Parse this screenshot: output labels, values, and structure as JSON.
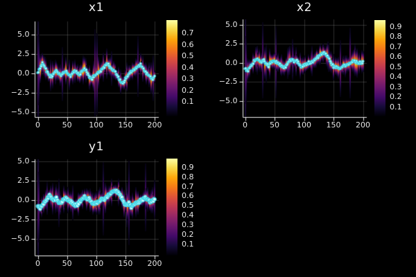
{
  "figure": {
    "background": "#000000",
    "text_color": "#e6e6e6",
    "axis_color": "#f0f0f0",
    "grid_color": "rgba(150,150,150,0.30)"
  },
  "colormap": {
    "name": "inferno",
    "stops": [
      "#000004",
      "#160b39",
      "#420a68",
      "#6a176e",
      "#932667",
      "#bc3754",
      "#dd513a",
      "#f37819",
      "#fca50a",
      "#f6d746",
      "#fcffa4"
    ]
  },
  "marker_style": {
    "fill": "#d8feff",
    "edge": "#1ecfe3",
    "line": "rgba(110,233,245,0.55)"
  },
  "chart_data": [
    {
      "type": "heatmap",
      "title": "x1",
      "xlabel": "",
      "ylabel": "",
      "grid": true,
      "legend": "none",
      "xtick_labels": [
        "0",
        "50",
        "100",
        "150",
        "200"
      ],
      "xtick_values": [
        0,
        50,
        100,
        150,
        200
      ],
      "ytick_labels": [
        "5.0",
        "2.5",
        "0.0",
        "−2.5",
        "−5.0"
      ],
      "ytick_values": [
        5,
        2.5,
        0,
        -2.5,
        -5
      ],
      "xlim": [
        -7,
        207
      ],
      "ylim": [
        -5.6,
        6.7
      ],
      "colorbar_tick_labels": [
        "0.7",
        "0.6",
        "0.5",
        "0.4",
        "0.3",
        "0.2",
        "0.1"
      ],
      "colorbar_range": [
        0,
        0.75
      ],
      "overlay_marker": "cyan-circles",
      "trajectory": {
        "t": [
          0,
          4,
          8,
          12,
          16,
          20,
          24,
          28,
          32,
          36,
          40,
          44,
          48,
          52,
          56,
          60,
          64,
          68,
          72,
          76,
          80,
          84,
          88,
          92,
          96,
          100,
          104,
          108,
          112,
          116,
          120,
          124,
          128,
          132,
          136,
          140,
          144,
          148,
          152,
          156,
          160,
          164,
          168,
          172,
          176,
          180,
          184,
          188,
          192,
          196,
          200
        ],
        "y": [
          0.1,
          0.7,
          1.2,
          0.8,
          0.2,
          -0.3,
          -0.45,
          0.1,
          0.3,
          -0.1,
          -0.35,
          0.05,
          0.25,
          -0.1,
          -0.3,
          0.05,
          0.3,
          0.0,
          -0.15,
          0.3,
          0.55,
          0.2,
          -0.5,
          -0.75,
          -0.35,
          -0.2,
          0.1,
          0.4,
          0.7,
          1.0,
          1.15,
          0.7,
          0.45,
          0.2,
          -0.3,
          -0.9,
          -1.3,
          -1.1,
          -0.5,
          -0.1,
          0.2,
          0.4,
          0.7,
          0.9,
          1.05,
          0.6,
          0.2,
          -0.1,
          -0.4,
          -0.8,
          -0.45
        ]
      }
    },
    {
      "type": "heatmap",
      "title": "x2",
      "xlabel": "",
      "ylabel": "",
      "grid": true,
      "legend": "none",
      "xtick_labels": [
        "0",
        "50",
        "100",
        "150",
        "200"
      ],
      "xtick_values": [
        0,
        50,
        100,
        150,
        200
      ],
      "ytick_labels": [
        "5.0",
        "2.5",
        "0.0",
        "−2.5",
        "−5.0"
      ],
      "ytick_values": [
        5,
        2.5,
        0,
        -2.5,
        -5
      ],
      "xlim": [
        -7,
        207
      ],
      "ylim": [
        -7.1,
        5.7
      ],
      "colorbar_tick_labels": [
        "0.9",
        "0.8",
        "0.7",
        "0.6",
        "0.5",
        "0.4",
        "0.3",
        "0.2",
        "0.1"
      ],
      "colorbar_range": [
        0,
        0.95
      ],
      "overlay_marker": "cyan-circles",
      "trajectory": {
        "t": [
          0,
          4,
          8,
          12,
          16,
          20,
          24,
          28,
          32,
          36,
          40,
          44,
          48,
          52,
          56,
          60,
          64,
          68,
          72,
          76,
          80,
          84,
          88,
          92,
          96,
          100,
          104,
          108,
          112,
          116,
          120,
          124,
          128,
          132,
          136,
          140,
          144,
          148,
          152,
          156,
          160,
          164,
          168,
          172,
          176,
          180,
          184,
          188,
          192,
          196,
          200
        ],
        "y": [
          -0.8,
          -1.05,
          -0.7,
          -0.2,
          0.3,
          0.5,
          0.25,
          0.1,
          0.3,
          -0.2,
          -0.4,
          0.1,
          0.3,
          0.1,
          -0.1,
          -0.3,
          -0.55,
          -0.6,
          -0.1,
          0.3,
          0.4,
          0.2,
          0.3,
          -0.2,
          -0.5,
          -0.3,
          -0.25,
          0.0,
          0.1,
          0.2,
          0.5,
          0.8,
          1.1,
          1.3,
          1.2,
          0.9,
          0.3,
          -0.3,
          -0.6,
          -0.5,
          -0.8,
          -0.6,
          -0.3,
          -0.3,
          -0.1,
          0.1,
          0.3,
          0.1,
          -0.1,
          0.0,
          0.15
        ]
      }
    },
    {
      "type": "heatmap",
      "title": "y1",
      "xlabel": "",
      "ylabel": "",
      "grid": true,
      "legend": "none",
      "xtick_labels": [
        "0",
        "50",
        "100",
        "150",
        "200"
      ],
      "xtick_values": [
        0,
        50,
        100,
        150,
        200
      ],
      "ytick_labels": [
        "5.0",
        "2.5",
        "0.0",
        "−2.5",
        "−5.0"
      ],
      "ytick_values": [
        5,
        2.5,
        0,
        -2.5,
        -5
      ],
      "xlim": [
        -7,
        207
      ],
      "ylim": [
        -7.1,
        5.3
      ],
      "colorbar_tick_labels": [
        "0.9",
        "0.8",
        "0.7",
        "0.6",
        "0.5",
        "0.4",
        "0.3",
        "0.2",
        "0.1"
      ],
      "colorbar_range": [
        0,
        0.95
      ],
      "overlay_marker": "cyan-circles-large",
      "trajectory": {
        "t": [
          0,
          4,
          8,
          12,
          16,
          20,
          24,
          28,
          32,
          36,
          40,
          44,
          48,
          52,
          56,
          60,
          64,
          68,
          72,
          76,
          80,
          84,
          88,
          92,
          96,
          100,
          104,
          108,
          112,
          116,
          120,
          124,
          128,
          132,
          136,
          140,
          144,
          148,
          152,
          156,
          160,
          164,
          168,
          172,
          176,
          180,
          184,
          188,
          192,
          196,
          200
        ],
        "y": [
          -0.7,
          -1.0,
          -0.6,
          -0.25,
          0.25,
          0.55,
          0.3,
          0.05,
          0.25,
          -0.25,
          -0.35,
          0.15,
          0.25,
          0.05,
          -0.15,
          -0.35,
          -0.6,
          -0.55,
          -0.15,
          0.25,
          0.45,
          0.15,
          0.25,
          -0.25,
          -0.45,
          -0.35,
          -0.2,
          0.05,
          0.15,
          0.25,
          0.55,
          0.85,
          1.15,
          1.3,
          1.15,
          0.85,
          0.25,
          -0.35,
          -0.55,
          -0.45,
          -0.85,
          -0.55,
          -0.25,
          -0.25,
          -0.05,
          0.15,
          0.35,
          0.15,
          -0.15,
          -0.05,
          0.1
        ]
      }
    }
  ]
}
